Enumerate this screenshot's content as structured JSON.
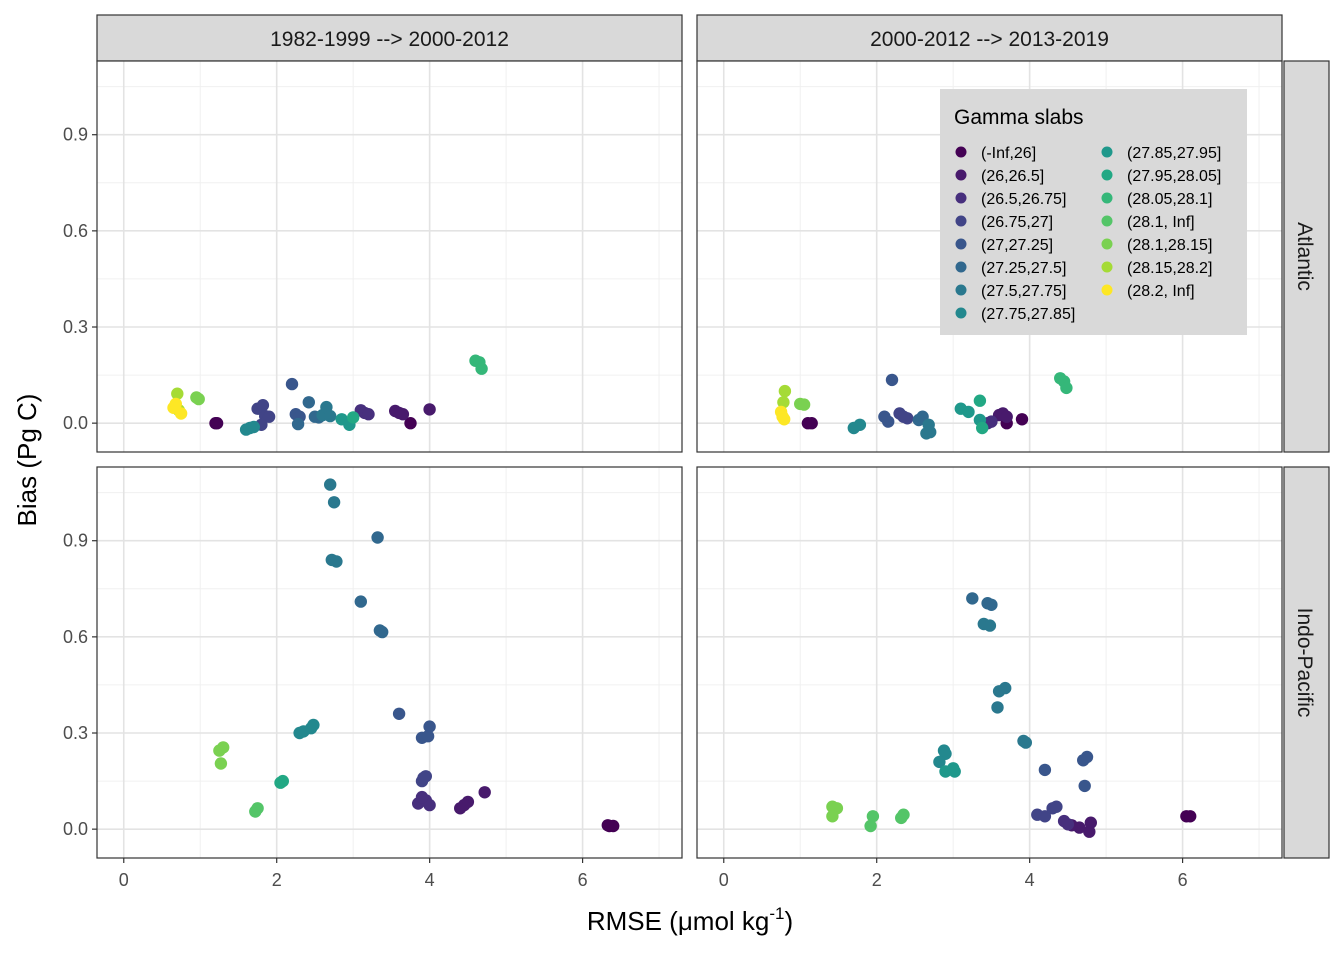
{
  "chart_data": {
    "type": "scatter",
    "facets": {
      "columns": [
        "1982-1999 --> 2000-2012",
        "2000-2012 --> 2013-2019"
      ],
      "rows": [
        "Atlantic",
        "Indo-Pacific"
      ]
    },
    "xlabel_main": "RMSE (μmol kg",
    "xlabel_sup": "-1",
    "xlabel_close": ")",
    "ylabel": "Bias (Pg C)",
    "xlim": [
      -0.35,
      7.3
    ],
    "x_ticks": [
      "0",
      "2",
      "4",
      "6"
    ],
    "x_tick_values": [
      0,
      2,
      4,
      6
    ],
    "ylim_top": [
      -0.09,
      1.13
    ],
    "ylim_bottom": [
      -0.09,
      1.13
    ],
    "y_ticks": [
      "0.0",
      "0.3",
      "0.6",
      "0.9"
    ],
    "y_tick_values": [
      0,
      0.3,
      0.6,
      0.9
    ],
    "legend": {
      "title": "Gamma slabs",
      "entries": [
        {
          "label": "(-Inf,26]",
          "color": "#440154"
        },
        {
          "label": "(26,26.5]",
          "color": "#481A6C"
        },
        {
          "label": "(26.5,26.75]",
          "color": "#472F7D"
        },
        {
          "label": "(26.75,27]",
          "color": "#414487"
        },
        {
          "label": "(27,27.25]",
          "color": "#39568C"
        },
        {
          "label": "(27.25,27.5]",
          "color": "#31688E"
        },
        {
          "label": "(27.5,27.75]",
          "color": "#2A788E"
        },
        {
          "label": "(27.75,27.85]",
          "color": "#23888E"
        },
        {
          "label": "(27.85,27.95]",
          "color": "#1F988B"
        },
        {
          "label": "(27.95,28.05]",
          "color": "#22A884"
        },
        {
          "label": "(28.05,28.1]",
          "color": "#35B779"
        },
        {
          "label": "(28.1, Inf]",
          "color": "#54C568"
        },
        {
          "label": "(28.1,28.15]",
          "color": "#7AD151"
        },
        {
          "label": "(28.15,28.2]",
          "color": "#A5DB36"
        },
        {
          "label": "(28.2, Inf]",
          "color": "#FDE725"
        }
      ]
    },
    "panels": [
      {
        "row": "Atlantic",
        "col": "1982-1999 --> 2000-2012",
        "points": [
          [
            1.2,
            0.0,
            0
          ],
          [
            1.22,
            0.0,
            0
          ],
          [
            3.75,
            0.0,
            0
          ],
          [
            3.55,
            0.038,
            1
          ],
          [
            3.6,
            0.032,
            1
          ],
          [
            3.65,
            0.028,
            1
          ],
          [
            4.0,
            0.043,
            1
          ],
          [
            3.1,
            0.04,
            2
          ],
          [
            3.15,
            0.032,
            2
          ],
          [
            3.2,
            0.028,
            2
          ],
          [
            1.75,
            0.045,
            3
          ],
          [
            1.82,
            0.056,
            3
          ],
          [
            1.85,
            0.022,
            3
          ],
          [
            1.9,
            0.02,
            3
          ],
          [
            1.8,
            -0.005,
            3
          ],
          [
            2.2,
            0.122,
            4
          ],
          [
            2.25,
            0.028,
            4
          ],
          [
            2.3,
            0.02,
            4
          ],
          [
            2.42,
            0.065,
            5
          ],
          [
            2.5,
            0.02,
            5
          ],
          [
            2.55,
            0.018,
            5
          ],
          [
            2.28,
            -0.003,
            5
          ],
          [
            2.6,
            0.025,
            6
          ],
          [
            2.65,
            0.05,
            6
          ],
          [
            2.7,
            0.022,
            6
          ],
          [
            1.6,
            -0.02,
            7
          ],
          [
            1.65,
            -0.015,
            7
          ],
          [
            1.7,
            -0.012,
            7
          ],
          [
            2.85,
            0.012,
            8
          ],
          [
            2.95,
            -0.005,
            8
          ],
          [
            3.0,
            0.018,
            9
          ],
          [
            4.6,
            0.195,
            10
          ],
          [
            4.65,
            0.19,
            10
          ],
          [
            4.68,
            0.17,
            10
          ],
          [
            0.95,
            0.08,
            12
          ],
          [
            0.98,
            0.075,
            12
          ],
          [
            0.7,
            0.092,
            13
          ],
          [
            0.72,
            0.04,
            13
          ],
          [
            0.65,
            0.048,
            14
          ],
          [
            0.75,
            0.03,
            14
          ],
          [
            0.68,
            0.06,
            14
          ]
        ]
      },
      {
        "row": "Atlantic",
        "col": "2000-2012 --> 2013-2019",
        "points": [
          [
            1.1,
            0.0,
            0
          ],
          [
            1.15,
            0.0,
            0
          ],
          [
            3.7,
            0.0,
            0
          ],
          [
            3.9,
            0.012,
            0
          ],
          [
            3.6,
            0.025,
            1
          ],
          [
            3.65,
            0.03,
            1
          ],
          [
            3.7,
            0.02,
            1
          ],
          [
            3.45,
            0.0,
            2
          ],
          [
            3.5,
            0.005,
            2
          ],
          [
            2.3,
            0.03,
            3
          ],
          [
            2.4,
            0.015,
            3
          ],
          [
            2.35,
            0.02,
            3
          ],
          [
            2.2,
            0.135,
            4
          ],
          [
            2.15,
            0.005,
            4
          ],
          [
            2.1,
            0.02,
            4
          ],
          [
            2.6,
            0.02,
            5
          ],
          [
            2.55,
            0.01,
            5
          ],
          [
            2.65,
            -0.032,
            6
          ],
          [
            2.7,
            -0.028,
            6
          ],
          [
            2.68,
            -0.005,
            6
          ],
          [
            1.7,
            -0.015,
            7
          ],
          [
            1.78,
            -0.005,
            7
          ],
          [
            3.1,
            0.045,
            8
          ],
          [
            3.2,
            0.035,
            8
          ],
          [
            3.35,
            0.01,
            8
          ],
          [
            3.35,
            0.07,
            9
          ],
          [
            3.38,
            -0.015,
            9
          ],
          [
            4.4,
            0.14,
            10
          ],
          [
            4.45,
            0.13,
            10
          ],
          [
            4.48,
            0.11,
            10
          ],
          [
            1.0,
            0.06,
            12
          ],
          [
            1.05,
            0.058,
            12
          ],
          [
            0.8,
            0.1,
            13
          ],
          [
            0.78,
            0.065,
            13
          ],
          [
            0.75,
            0.035,
            14
          ],
          [
            0.77,
            0.02,
            14
          ],
          [
            0.79,
            0.012,
            14
          ]
        ]
      },
      {
        "row": "Indo-Pacific",
        "col": "1982-1999 --> 2000-2012",
        "points": [
          [
            6.35,
            0.01,
            0
          ],
          [
            6.4,
            0.01,
            0
          ],
          [
            6.33,
            0.012,
            0
          ],
          [
            4.72,
            0.115,
            1
          ],
          [
            4.5,
            0.085,
            1
          ],
          [
            4.45,
            0.075,
            1
          ],
          [
            4.4,
            0.065,
            1
          ],
          [
            3.85,
            0.08,
            2
          ],
          [
            3.95,
            0.09,
            2
          ],
          [
            4.0,
            0.075,
            2
          ],
          [
            3.9,
            0.1,
            2
          ],
          [
            3.9,
            0.15,
            3
          ],
          [
            3.95,
            0.165,
            3
          ],
          [
            3.92,
            0.16,
            3
          ],
          [
            3.6,
            0.36,
            4
          ],
          [
            3.9,
            0.285,
            4
          ],
          [
            4.0,
            0.32,
            4
          ],
          [
            3.98,
            0.29,
            4
          ],
          [
            3.1,
            0.71,
            5
          ],
          [
            3.32,
            0.91,
            5
          ],
          [
            3.35,
            0.62,
            5
          ],
          [
            3.38,
            0.615,
            5
          ],
          [
            2.7,
            1.075,
            6
          ],
          [
            2.75,
            1.02,
            6
          ],
          [
            2.72,
            0.84,
            6
          ],
          [
            2.78,
            0.835,
            6
          ],
          [
            2.3,
            0.3,
            7
          ],
          [
            2.35,
            0.305,
            7
          ],
          [
            2.45,
            0.315,
            7
          ],
          [
            2.48,
            0.325,
            7
          ],
          [
            2.05,
            0.145,
            9
          ],
          [
            2.08,
            0.15,
            9
          ],
          [
            1.72,
            0.055,
            11
          ],
          [
            1.75,
            0.065,
            11
          ],
          [
            1.25,
            0.245,
            12
          ],
          [
            1.3,
            0.255,
            12
          ],
          [
            1.27,
            0.205,
            12
          ]
        ]
      },
      {
        "row": "Indo-Pacific",
        "col": "2000-2012 --> 2013-2019",
        "points": [
          [
            6.05,
            0.04,
            0
          ],
          [
            6.1,
            0.04,
            0
          ],
          [
            4.8,
            0.02,
            1
          ],
          [
            4.78,
            -0.008,
            1
          ],
          [
            4.65,
            0.005,
            1
          ],
          [
            4.55,
            0.012,
            1
          ],
          [
            4.45,
            0.025,
            2
          ],
          [
            4.5,
            0.015,
            2
          ],
          [
            4.1,
            0.045,
            3
          ],
          [
            4.2,
            0.04,
            3
          ],
          [
            4.3,
            0.065,
            3
          ],
          [
            4.35,
            0.07,
            3
          ],
          [
            4.2,
            0.185,
            4
          ],
          [
            4.7,
            0.215,
            4
          ],
          [
            4.75,
            0.225,
            4
          ],
          [
            4.72,
            0.135,
            4
          ],
          [
            3.25,
            0.72,
            5
          ],
          [
            3.45,
            0.705,
            5
          ],
          [
            3.5,
            0.7,
            5
          ],
          [
            3.4,
            0.64,
            6
          ],
          [
            3.48,
            0.635,
            6
          ],
          [
            3.6,
            0.43,
            6
          ],
          [
            3.68,
            0.44,
            6
          ],
          [
            3.58,
            0.38,
            6
          ],
          [
            3.92,
            0.275,
            6
          ],
          [
            3.95,
            0.27,
            6
          ],
          [
            2.88,
            0.245,
            7
          ],
          [
            2.9,
            0.235,
            7
          ],
          [
            2.82,
            0.21,
            7
          ],
          [
            2.9,
            0.18,
            8
          ],
          [
            3.0,
            0.19,
            8
          ],
          [
            3.02,
            0.18,
            8
          ],
          [
            2.35,
            0.045,
            11
          ],
          [
            2.32,
            0.035,
            11
          ],
          [
            1.95,
            0.04,
            11
          ],
          [
            1.92,
            0.01,
            11
          ],
          [
            1.42,
            0.07,
            12
          ],
          [
            1.48,
            0.065,
            12
          ],
          [
            1.42,
            0.04,
            12
          ]
        ]
      }
    ]
  }
}
